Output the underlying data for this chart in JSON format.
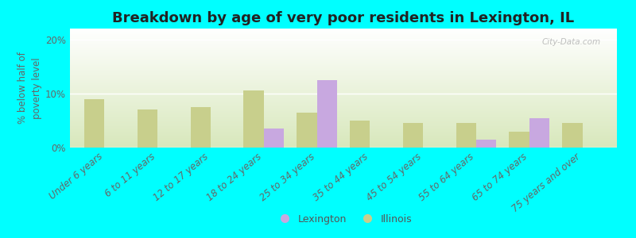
{
  "title": "Breakdown by age of very poor residents in Lexington, IL",
  "ylabel": "% below half of\npoverty level",
  "background_color": "#00FFFF",
  "plot_bg_top": "#d8e8bc",
  "plot_bg_bottom": "#eef5e0",
  "categories": [
    "Under 6 years",
    "6 to 11 years",
    "12 to 17 years",
    "18 to 24 years",
    "25 to 34 years",
    "35 to 44 years",
    "45 to 54 years",
    "55 to 64 years",
    "65 to 74 years",
    "75 years and over"
  ],
  "lexington_values": [
    0,
    0,
    0,
    3.5,
    12.5,
    0,
    0,
    1.5,
    5.5,
    0
  ],
  "illinois_values": [
    9.0,
    7.0,
    7.5,
    10.5,
    6.5,
    5.0,
    4.5,
    4.5,
    3.0,
    4.5
  ],
  "lexington_color": "#c8a8e0",
  "illinois_color": "#c8cf8c",
  "ylim": [
    0,
    22
  ],
  "yticks": [
    0,
    10,
    20
  ],
  "ytick_labels": [
    "0%",
    "10%",
    "20%"
  ],
  "bar_width": 0.38,
  "title_fontsize": 13,
  "axis_fontsize": 8.5,
  "tick_fontsize": 8.5,
  "legend_fontsize": 9,
  "watermark": "City-Data.com"
}
